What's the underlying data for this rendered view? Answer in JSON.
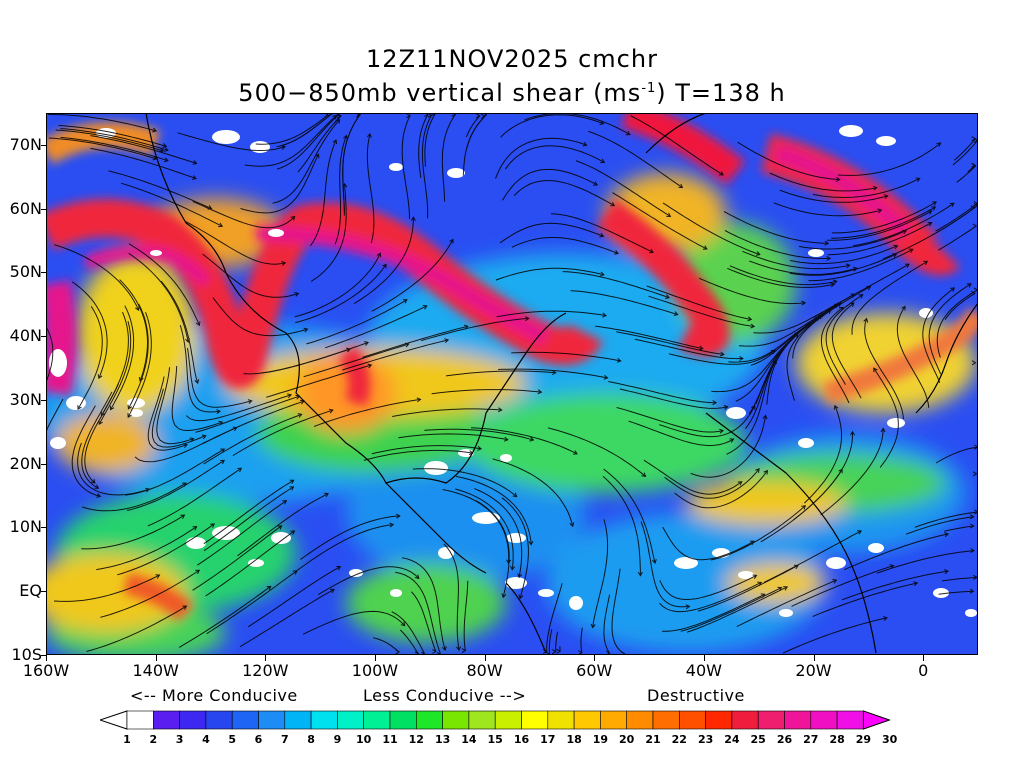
{
  "title": {
    "line1": "12Z11NOV2025 cmchr",
    "line2_pre": "500−850mb vertical shear (ms",
    "line2_sup": "-1",
    "line2_post": ") T=138 h"
  },
  "map": {
    "region_lon": [
      -160,
      10
    ],
    "region_lat": [
      -10,
      75
    ],
    "variable": "500-850mb vertical shear",
    "units": "ms-1",
    "overlay": "streamlines",
    "lat_ticks": [
      "70N",
      "60N",
      "50N",
      "40N",
      "30N",
      "20N",
      "10N",
      "EQ",
      "10S"
    ],
    "lat_values": [
      70,
      60,
      50,
      40,
      30,
      20,
      10,
      0,
      -10
    ],
    "lon_ticks": [
      "160W",
      "140W",
      "120W",
      "100W",
      "80W",
      "60W",
      "40W",
      "20W",
      "0"
    ],
    "lon_values": [
      -160,
      -140,
      -120,
      -100,
      -80,
      -60,
      -40,
      -20,
      0
    ]
  },
  "legend": {
    "more_conducive": "<-- More Conducive",
    "less_conducive": "Less Conducive -->",
    "destructive": "Destructive",
    "labels": [
      "1",
      "2",
      "3",
      "4",
      "5",
      "6",
      "7",
      "8",
      "9",
      "10",
      "11",
      "12",
      "13",
      "14",
      "15",
      "16",
      "17",
      "18",
      "19",
      "20",
      "21",
      "22",
      "23",
      "24",
      "25",
      "26",
      "27",
      "28",
      "29",
      "30"
    ],
    "colors": [
      "#ffffff",
      "#5a1ef0",
      "#3c28f0",
      "#2846f0",
      "#1e64f5",
      "#1e8cf5",
      "#00b4f5",
      "#00e1f0",
      "#00f0c8",
      "#00f096",
      "#00e164",
      "#1ee628",
      "#78e600",
      "#a0e61e",
      "#c8f000",
      "#ffff00",
      "#f0e100",
      "#ffc800",
      "#ffaa00",
      "#ff8c00",
      "#ff6e00",
      "#ff5000",
      "#ff2800",
      "#f01e3c",
      "#f01e6e",
      "#f0149b",
      "#f00fc3",
      "#f00fe6",
      "#ff00ff"
    ]
  }
}
